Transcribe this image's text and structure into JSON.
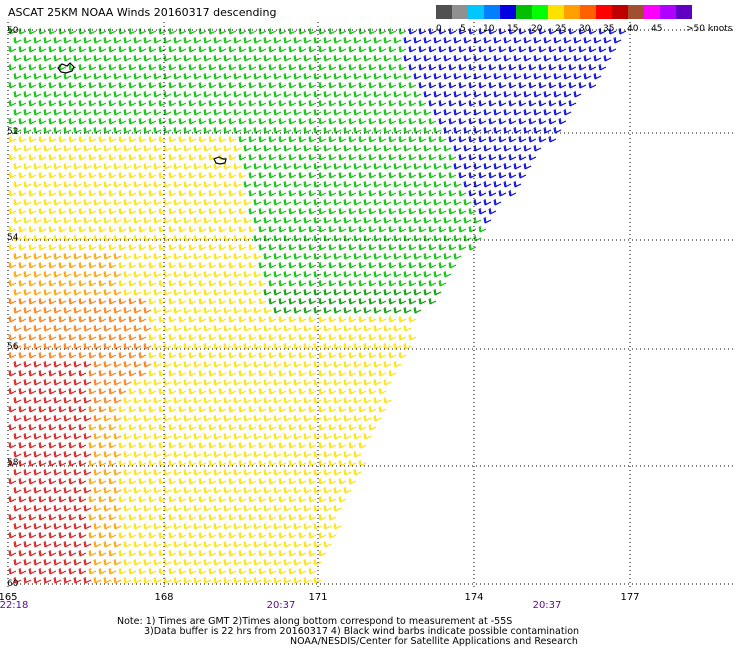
{
  "header": {
    "title": "ASCAT 25KM NOAA Winds 20160317 descending"
  },
  "colorscale": {
    "labels": [
      "0",
      "5",
      "10",
      "15",
      "20",
      "25",
      "30",
      "35",
      "40",
      "45",
      ">50 knots"
    ],
    "colors": [
      "#505050",
      "#909090",
      "#00c8ff",
      "#0080ff",
      "#0000e0",
      "#00c000",
      "#00ff00",
      "#ffe000",
      "#ffa000",
      "#ff6000",
      "#ff0000",
      "#c00000",
      "#a05030",
      "#ff00ff",
      "#b000ff",
      "#6000c0"
    ]
  },
  "axes": {
    "longitudes": [
      "165",
      "168",
      "171",
      "174",
      "177"
    ],
    "latitudes": [
      "50",
      "52",
      "54",
      "56",
      "58",
      "60"
    ],
    "times": [
      "22:18",
      "20:37",
      "20:37"
    ]
  },
  "notes": {
    "line1": "Note: 1) Times are GMT 2)Times along bottom correspond to measurement at -55S",
    "line2": "3)Data buffer is 22 hrs from 20160317 4) Black wind barbs indicate possible contamination",
    "line3": "NOAA/NESDIS/Center for Satellite Applications and Research"
  },
  "style": {
    "grid_color": "#000000",
    "time_color": "#5a0a8a"
  }
}
